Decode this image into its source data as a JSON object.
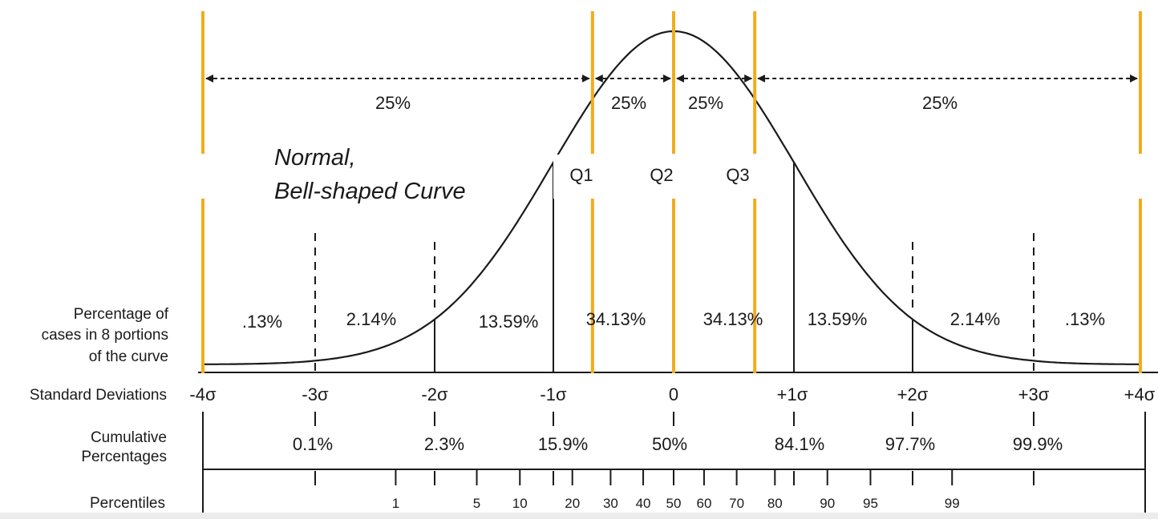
{
  "title_lines": [
    "Normal,",
    "Bell-shaped Curve"
  ],
  "quartile_percent_labels": [
    "25%",
    "25%",
    "25%",
    "25%"
  ],
  "quartile_labels": [
    "Q1",
    "Q2",
    "Q3"
  ],
  "row_labels": {
    "percentage": [
      "Percentage of",
      "cases in 8 portions",
      "of the curve"
    ],
    "standard_deviations": "Standard Deviations",
    "cumulative": [
      "Cumulative",
      "Percentages"
    ],
    "percentiles": "Percentiles"
  },
  "portion_percentages": [
    ".13%",
    "2.14%",
    "13.59%",
    "34.13%",
    "34.13%",
    "13.59%",
    "2.14%",
    ".13%"
  ],
  "sigma_labels": [
    "-4σ",
    "-3σ",
    "-2σ",
    "-1σ",
    "0",
    "+1σ",
    "+2σ",
    "+3σ",
    "+4σ"
  ],
  "cumulative_percentages": [
    "0.1%",
    "2.3%",
    "15.9%",
    "50%",
    "84.1%",
    "97.7%",
    "99.9%"
  ],
  "percentiles": [
    {
      "label": "1",
      "z": -2.326
    },
    {
      "label": "5",
      "z": -1.645
    },
    {
      "label": "10",
      "z": -1.282
    },
    {
      "label": "20",
      "z": -0.842
    },
    {
      "label": "30",
      "z": -0.524
    },
    {
      "label": "40",
      "z": -0.253
    },
    {
      "label": "50",
      "z": 0
    },
    {
      "label": "60",
      "z": 0.253
    },
    {
      "label": "70",
      "z": 0.524
    },
    {
      "label": "80",
      "z": 0.842
    },
    {
      "label": "90",
      "z": 1.282
    },
    {
      "label": "95",
      "z": 1.645
    },
    {
      "label": "99",
      "z": 2.326
    }
  ],
  "quartile_z": [
    -0.6745,
    0,
    0.6745
  ],
  "colors": {
    "quartile_line": "#f2ac1c",
    "curve": "#1a1a1a",
    "text": "#1a1a1a"
  }
}
